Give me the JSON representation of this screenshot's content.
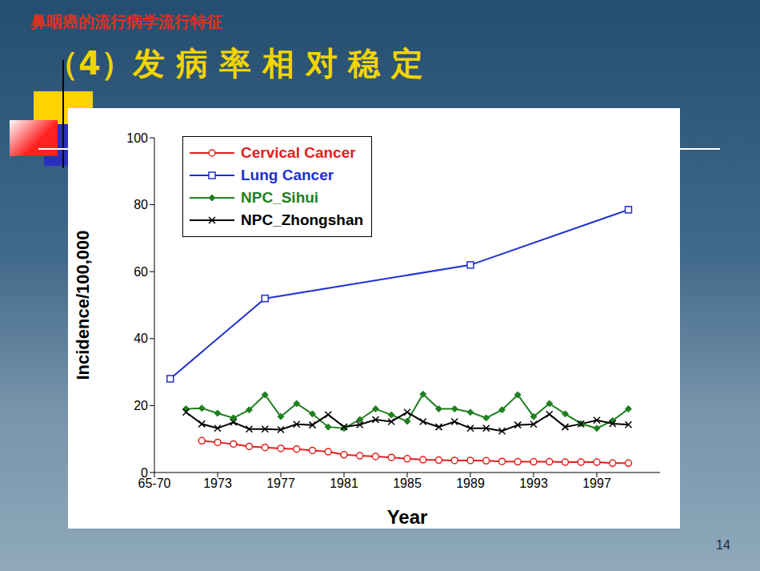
{
  "slide": {
    "header": "鼻咽癌的流行病学流行特征",
    "title": "（4）发 病 率 相 对 稳 定",
    "page": "14"
  },
  "chart_data": {
    "type": "line",
    "x_label": "Year",
    "y_label": "Incidence/100,000",
    "xlim": [
      1969,
      2001
    ],
    "xticks": [
      {
        "value": 1969,
        "label": "65-70"
      },
      1973,
      1977,
      1981,
      1985,
      1989,
      1993,
      1997
    ],
    "ylim": [
      0,
      100
    ],
    "yticks": [
      0,
      20,
      40,
      60,
      80,
      100
    ],
    "grid": false,
    "legend": "upper left",
    "series": [
      {
        "name": "Cervical Cancer",
        "color": "#e02020",
        "marker": "circle",
        "x": [
          1972,
          1973,
          1974,
          1975,
          1976,
          1977,
          1978,
          1979,
          1980,
          1981,
          1982,
          1983,
          1984,
          1985,
          1986,
          1987,
          1988,
          1989,
          1990,
          1991,
          1992,
          1993,
          1994,
          1995,
          1996,
          1997,
          1998,
          1999
        ],
        "values": [
          9.5,
          9,
          8.5,
          7.8,
          7.5,
          7.2,
          7,
          6.6,
          6.2,
          5.3,
          5,
          4.8,
          4.5,
          4.1,
          3.8,
          3.7,
          3.6,
          3.6,
          3.5,
          3.3,
          3.2,
          3.2,
          3.2,
          3.1,
          3.1,
          3.1,
          2.8,
          2.8
        ]
      },
      {
        "name": "Lung Cancer",
        "color": "#2030d0",
        "marker": "square",
        "x": [
          1970,
          1976,
          1989,
          1999
        ],
        "values": [
          28,
          52,
          62,
          78.5
        ]
      },
      {
        "name": "NPC_Sihui",
        "color": "#208020",
        "marker": "diamond",
        "x": [
          1971,
          1972,
          1973,
          1974,
          1975,
          1976,
          1977,
          1978,
          1979,
          1980,
          1981,
          1982,
          1983,
          1984,
          1985,
          1986,
          1987,
          1988,
          1989,
          1990,
          1991,
          1992,
          1993,
          1994,
          1995,
          1996,
          1997,
          1998,
          1999
        ],
        "values": [
          19,
          19.2,
          17.7,
          16.3,
          18.7,
          23.2,
          16.7,
          20.6,
          17.5,
          13.6,
          13.2,
          15.8,
          19,
          17.2,
          15.3,
          23.4,
          19,
          19,
          18,
          16.3,
          18.7,
          23.2,
          16.7,
          20.6,
          17.5,
          14.6,
          13.2,
          15.5,
          19
        ]
      },
      {
        "name": "NPC_Zhongshan",
        "color": "#000000",
        "marker": "x",
        "x": [
          1971,
          1972,
          1973,
          1974,
          1975,
          1976,
          1977,
          1978,
          1979,
          1980,
          1981,
          1982,
          1983,
          1984,
          1985,
          1986,
          1987,
          1988,
          1989,
          1990,
          1991,
          1992,
          1993,
          1994,
          1995,
          1996,
          1997,
          1998,
          1999
        ],
        "values": [
          18,
          14.5,
          13.2,
          15,
          13,
          13,
          12.8,
          14.4,
          14.2,
          17.3,
          13.6,
          14.3,
          15.8,
          15.2,
          18,
          15.2,
          13.6,
          15.2,
          13.2,
          13.2,
          12.4,
          14.2,
          14.4,
          17.4,
          13.6,
          14.5,
          15.6,
          14.6,
          14.3
        ]
      }
    ]
  }
}
